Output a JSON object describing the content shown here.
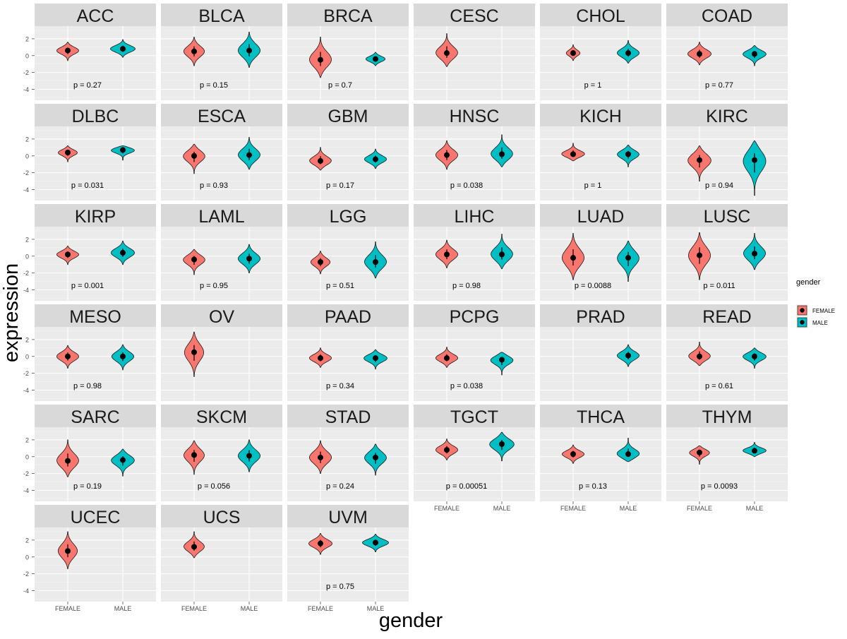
{
  "chart_data": {
    "type": "violin",
    "xlabel": "gender",
    "ylabel": "expression",
    "categories": [
      "FEMALE",
      "MALE"
    ],
    "y_ticks": [
      2,
      0,
      -2,
      -4
    ],
    "y_tick_labels": [
      "2",
      "0",
      "-2",
      "-4"
    ],
    "ylim": [
      -5.3,
      3.5
    ],
    "legend": {
      "title": "gender",
      "position": "right",
      "entries": [
        {
          "label": "FEMALE",
          "color": "#F8766D"
        },
        {
          "label": "MALE",
          "color": "#00BFC4"
        }
      ]
    },
    "panel_bg": "#EBEBEB",
    "strip_bg": "#D9D9D9",
    "panels": [
      {
        "name": "ACC",
        "p": "p = 0.27",
        "female": {
          "median": 0.6,
          "min": -0.6,
          "max": 1.6,
          "spread": 0.8
        },
        "male": {
          "median": 0.8,
          "min": -0.2,
          "max": 1.9,
          "spread": 0.9
        }
      },
      {
        "name": "BLCA",
        "p": "p = 0.15",
        "female": {
          "median": 0.5,
          "min": -1.2,
          "max": 2.2,
          "spread": 0.75
        },
        "male": {
          "median": 0.6,
          "min": -1.4,
          "max": 2.8,
          "spread": 0.8
        }
      },
      {
        "name": "BRCA",
        "p": "p = 0.7",
        "female": {
          "median": -0.5,
          "min": -2.6,
          "max": 2.2,
          "spread": 0.8
        },
        "male": {
          "median": -0.4,
          "min": -1.2,
          "max": 0.4,
          "spread": 0.7
        }
      },
      {
        "name": "CESC",
        "p": "",
        "female": {
          "median": 0.3,
          "min": -1.3,
          "max": 2.6,
          "spread": 0.8
        },
        "male": null
      },
      {
        "name": "CHOL",
        "p": "p = 1",
        "female": {
          "median": 0.3,
          "min": -0.6,
          "max": 1.3,
          "spread": 0.5
        },
        "male": {
          "median": 0.3,
          "min": -0.9,
          "max": 1.8,
          "spread": 0.8
        }
      },
      {
        "name": "COAD",
        "p": "p = 0.77",
        "female": {
          "median": 0.2,
          "min": -1.1,
          "max": 1.6,
          "spread": 0.85
        },
        "male": {
          "median": 0.2,
          "min": -1.2,
          "max": 1.2,
          "spread": 0.85
        }
      },
      {
        "name": "DLBC",
        "p": "p = 0.031",
        "female": {
          "median": 0.4,
          "min": -0.7,
          "max": 1.2,
          "spread": 0.7
        },
        "male": {
          "median": 0.7,
          "min": -0.5,
          "max": 1.2,
          "spread": 0.9
        }
      },
      {
        "name": "ESCA",
        "p": "p = 0.93",
        "female": {
          "median": 0.0,
          "min": -2.1,
          "max": 1.4,
          "spread": 0.8
        },
        "male": {
          "median": 0.1,
          "min": -1.6,
          "max": 2.2,
          "spread": 0.8
        }
      },
      {
        "name": "GBM",
        "p": "p = 0.17",
        "female": {
          "median": -0.6,
          "min": -1.7,
          "max": 1.0,
          "spread": 0.8
        },
        "male": {
          "median": -0.4,
          "min": -1.5,
          "max": 0.8,
          "spread": 0.8
        }
      },
      {
        "name": "HNSC",
        "p": "p = 0.038",
        "female": {
          "median": 0.1,
          "min": -1.6,
          "max": 1.8,
          "spread": 0.8
        },
        "male": {
          "median": 0.2,
          "min": -1.3,
          "max": 2.5,
          "spread": 0.8
        }
      },
      {
        "name": "KICH",
        "p": "p = 1",
        "female": {
          "median": 0.2,
          "min": -0.6,
          "max": 1.5,
          "spread": 0.85
        },
        "male": {
          "median": 0.2,
          "min": -1.3,
          "max": 1.3,
          "spread": 0.8
        }
      },
      {
        "name": "KIRC",
        "p": "p = 0.94",
        "female": {
          "median": -0.5,
          "min": -3.0,
          "max": 1.2,
          "spread": 0.85
        },
        "male": {
          "median": -0.5,
          "min": -4.7,
          "max": 1.8,
          "spread": 0.85
        }
      },
      {
        "name": "KIRP",
        "p": "p = 0.001",
        "female": {
          "median": 0.2,
          "min": -1.0,
          "max": 1.2,
          "spread": 0.8
        },
        "male": {
          "median": 0.4,
          "min": -1.0,
          "max": 1.8,
          "spread": 0.85
        }
      },
      {
        "name": "LAML",
        "p": "p = 0.95",
        "female": {
          "median": -0.4,
          "min": -2.2,
          "max": 0.8,
          "spread": 0.8
        },
        "male": {
          "median": -0.3,
          "min": -2.0,
          "max": 1.4,
          "spread": 0.8
        }
      },
      {
        "name": "LGG",
        "p": "p = 0.51",
        "female": {
          "median": -0.7,
          "min": -2.1,
          "max": 0.6,
          "spread": 0.7
        },
        "male": {
          "median": -0.7,
          "min": -2.6,
          "max": 1.7,
          "spread": 0.8
        }
      },
      {
        "name": "LIHC",
        "p": "p = 0.98",
        "female": {
          "median": 0.2,
          "min": -1.4,
          "max": 1.9,
          "spread": 0.8
        },
        "male": {
          "median": 0.2,
          "min": -1.5,
          "max": 2.6,
          "spread": 0.8
        }
      },
      {
        "name": "LUAD",
        "p": "p = 0.0088",
        "female": {
          "median": -0.2,
          "min": -2.8,
          "max": 2.7,
          "spread": 0.8
        },
        "male": {
          "median": -0.2,
          "min": -3.0,
          "max": 1.8,
          "spread": 0.8
        }
      },
      {
        "name": "LUSC",
        "p": "p = 0.011",
        "female": {
          "median": 0.1,
          "min": -2.8,
          "max": 2.8,
          "spread": 0.8
        },
        "male": {
          "median": 0.3,
          "min": -1.6,
          "max": 2.7,
          "spread": 0.8
        }
      },
      {
        "name": "MESO",
        "p": "p = 0.98",
        "female": {
          "median": 0.0,
          "min": -1.4,
          "max": 1.3,
          "spread": 0.8
        },
        "male": {
          "median": 0.0,
          "min": -1.6,
          "max": 1.4,
          "spread": 0.8
        }
      },
      {
        "name": "OV",
        "p": "",
        "female": {
          "median": 0.5,
          "min": -2.4,
          "max": 2.9,
          "spread": 0.7
        },
        "male": null
      },
      {
        "name": "PAAD",
        "p": "p = 0.34",
        "female": {
          "median": -0.2,
          "min": -1.3,
          "max": 1.0,
          "spread": 0.8
        },
        "male": {
          "median": -0.2,
          "min": -1.5,
          "max": 0.8,
          "spread": 0.85
        }
      },
      {
        "name": "PCPG",
        "p": "p = 0.038",
        "female": {
          "median": -0.2,
          "min": -1.3,
          "max": 1.1,
          "spread": 0.8
        },
        "male": {
          "median": -0.4,
          "min": -2.2,
          "max": 0.5,
          "spread": 0.85
        }
      },
      {
        "name": "PRAD",
        "p": "",
        "female": null,
        "male": {
          "median": 0.1,
          "min": -1.2,
          "max": 1.4,
          "spread": 0.8
        }
      },
      {
        "name": "READ",
        "p": "p = 0.61",
        "female": {
          "median": 0.0,
          "min": -1.1,
          "max": 1.7,
          "spread": 0.8
        },
        "male": {
          "median": 0.0,
          "min": -1.4,
          "max": 1.0,
          "spread": 0.85
        }
      },
      {
        "name": "SARC",
        "p": "p = 0.19",
        "female": {
          "median": -0.5,
          "min": -2.4,
          "max": 2.0,
          "spread": 0.8
        },
        "male": {
          "median": -0.4,
          "min": -2.3,
          "max": 0.9,
          "spread": 0.85
        }
      },
      {
        "name": "SKCM",
        "p": "p = 0.056",
        "female": {
          "median": 0.2,
          "min": -2.1,
          "max": 1.9,
          "spread": 0.75
        },
        "male": {
          "median": 0.1,
          "min": -1.8,
          "max": 2.0,
          "spread": 0.8
        }
      },
      {
        "name": "STAD",
        "p": "p = 0.24",
        "female": {
          "median": -0.1,
          "min": -2.0,
          "max": 1.9,
          "spread": 0.8
        },
        "male": {
          "median": -0.1,
          "min": -2.2,
          "max": 1.5,
          "spread": 0.8
        }
      },
      {
        "name": "TGCT",
        "p": "p = 0.00051",
        "female": {
          "median": 0.8,
          "min": -0.4,
          "max": 2.1,
          "spread": 0.8
        },
        "male": {
          "median": 1.5,
          "min": -0.5,
          "max": 2.9,
          "spread": 0.9
        }
      },
      {
        "name": "THCA",
        "p": "p = 0.13",
        "female": {
          "median": 0.3,
          "min": -0.8,
          "max": 1.4,
          "spread": 0.8
        },
        "male": {
          "median": 0.3,
          "min": -0.6,
          "max": 2.2,
          "spread": 0.85
        }
      },
      {
        "name": "THYM",
        "p": "p = 0.0093",
        "female": {
          "median": 0.5,
          "min": -0.9,
          "max": 1.3,
          "spread": 0.75
        },
        "male": {
          "median": 0.7,
          "min": 0.0,
          "max": 1.7,
          "spread": 0.85
        }
      },
      {
        "name": "UCEC",
        "p": "",
        "female": {
          "median": 0.7,
          "min": -1.4,
          "max": 3.0,
          "spread": 0.7
        },
        "male": null
      },
      {
        "name": "UCS",
        "p": "",
        "female": {
          "median": 1.2,
          "min": -0.1,
          "max": 3.0,
          "spread": 0.75
        },
        "male": null
      },
      {
        "name": "UVM",
        "p": "p = 0.75",
        "female": {
          "median": 1.6,
          "min": 0.3,
          "max": 2.8,
          "spread": 0.85
        },
        "male": {
          "median": 1.7,
          "min": 0.6,
          "max": 2.7,
          "spread": 0.95
        }
      }
    ]
  }
}
